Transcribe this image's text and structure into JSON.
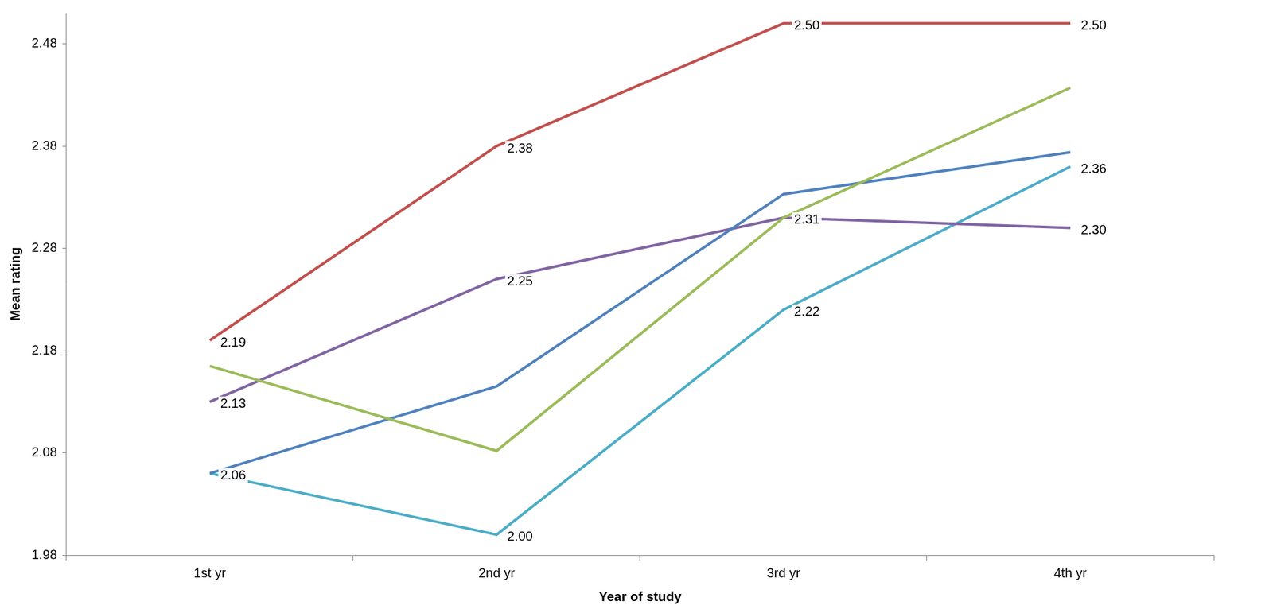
{
  "chart_data": {
    "type": "line",
    "x_label": "Year of study",
    "y_label": "Mean rating",
    "categories": [
      "1st yr",
      "2nd yr",
      "3rd yr",
      "4th yr"
    ],
    "ylim": [
      1.98,
      2.51
    ],
    "yticks": [
      1.98,
      2.08,
      2.18,
      2.28,
      2.38,
      2.48
    ],
    "grid": false,
    "series": [
      {
        "color": "#c0504d",
        "values": [
          2.19,
          2.38,
          2.5,
          2.5
        ],
        "value_labels": [
          "2.19",
          "2.38",
          "2.50",
          "2.50"
        ],
        "data_labels": true
      },
      {
        "color": "#9bbb59",
        "values": [
          2.165,
          2.082,
          2.31,
          2.437
        ],
        "data_labels": false
      },
      {
        "color": "#4f81bd",
        "values": [
          2.06,
          2.145,
          2.333,
          2.374
        ],
        "data_labels": false
      },
      {
        "color": "#8064a2",
        "values": [
          2.13,
          2.25,
          2.31,
          2.3
        ],
        "value_labels": [
          "2.13",
          "2.25",
          "2.31",
          "2.30"
        ],
        "data_labels": true
      },
      {
        "color": "#4bacc6",
        "values": [
          2.06,
          2.0,
          2.22,
          2.36
        ],
        "value_labels": [
          "2.06",
          "2.00",
          "2.22",
          "2.36"
        ],
        "data_labels": true
      }
    ]
  }
}
